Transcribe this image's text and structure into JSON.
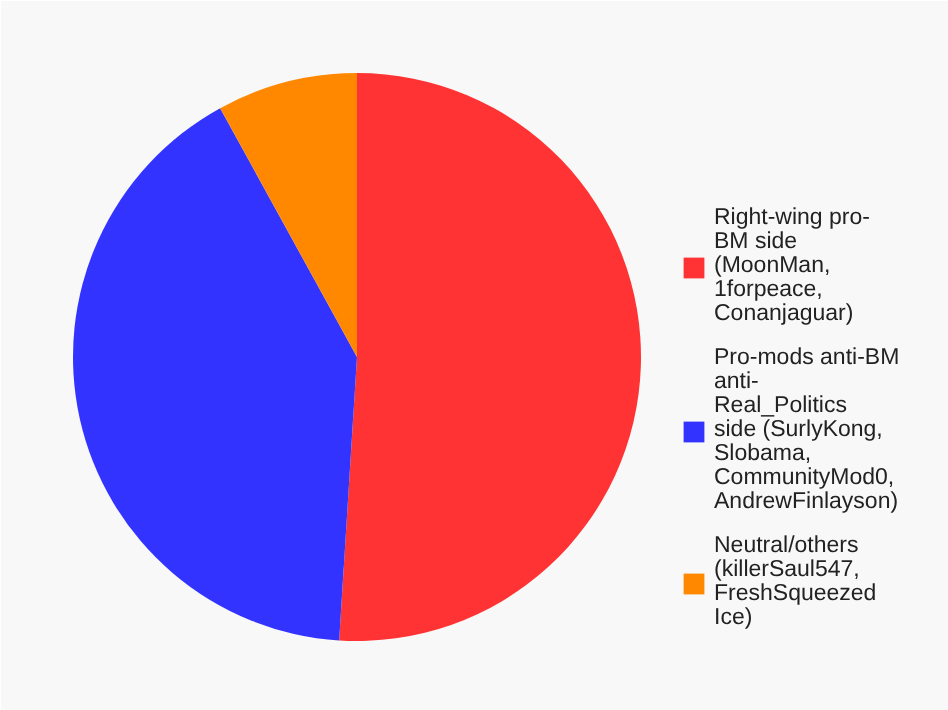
{
  "chart_data": {
    "type": "pie",
    "categories": [
      "Right-wing pro-BM side (MoonMan, 1forpeace, Conanjaguar)",
      "Pro-mods anti-BM anti-Real_Politics side (SurlyKong, Slobama, CommunityMod0, AndrewFinlayson)",
      "Neutral/others (killerSaul547, FreshSqueezed Ice)"
    ],
    "values": [
      51,
      41,
      8
    ],
    "colors": [
      "#ff3333",
      "#3333ff",
      "#ff8800"
    ],
    "legend": "right"
  }
}
